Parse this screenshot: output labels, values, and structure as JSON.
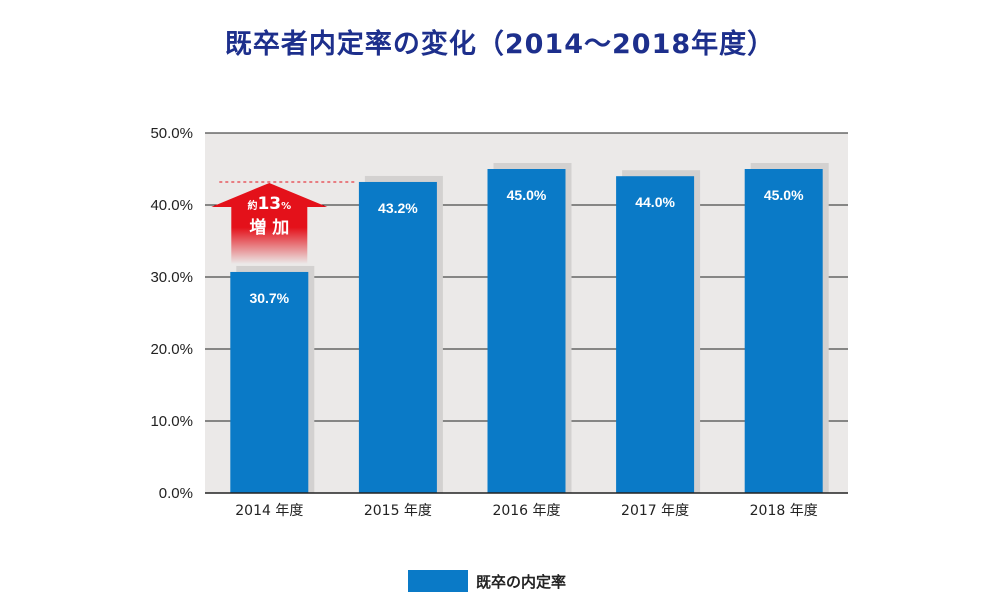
{
  "chart_data": {
    "type": "bar",
    "title": "既卒者内定率の変化（2014～2018年度）",
    "categories": [
      "2014 年度",
      "2015 年度",
      "2016 年度",
      "2017 年度",
      "2018 年度"
    ],
    "series": [
      {
        "name": "既卒の内定率",
        "values": [
          30.7,
          43.2,
          45.0,
          44.0,
          45.0
        ],
        "labels": [
          "30.7%",
          "43.2%",
          "45.0%",
          "44.0%",
          "45.0%"
        ],
        "color": "#0a7ac7"
      }
    ],
    "ylim": [
      0,
      50
    ],
    "yticks": [
      {
        "value": 0,
        "label": "0.0%"
      },
      {
        "value": 10,
        "label": "10.0%"
      },
      {
        "value": 20,
        "label": "20.0%"
      },
      {
        "value": 30,
        "label": "30.0%"
      },
      {
        "value": 40,
        "label": "40.0%"
      },
      {
        "value": 50,
        "label": "50.0%"
      }
    ],
    "grid": true,
    "legend": "bottom-center",
    "plot_background": "#ebe9e8",
    "annotation": {
      "prefix": "約",
      "number": "13",
      "unit": "%",
      "text": "増 加",
      "color": "#e4111a"
    }
  }
}
